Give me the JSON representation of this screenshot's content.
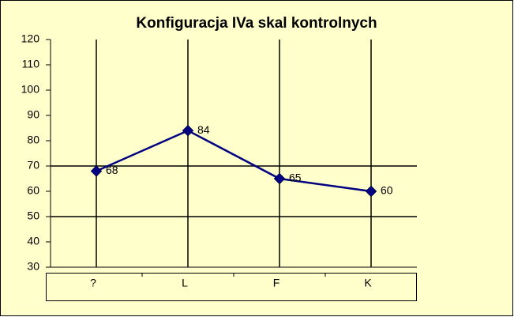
{
  "chart_data": {
    "type": "line",
    "title": "Konfiguracja IVa skal kontrolnych",
    "categories": [
      "?",
      "L",
      "F",
      "K"
    ],
    "series": [
      {
        "name": "Konfiguracja IVa",
        "color": "#000080",
        "values": [
          68,
          84,
          65,
          60
        ]
      }
    ],
    "ylim": [
      30,
      120
    ],
    "yticks": [
      30,
      40,
      50,
      60,
      70,
      80,
      90,
      100,
      110,
      120
    ],
    "hlines": [
      50,
      70
    ],
    "background": "#ffffcc"
  }
}
